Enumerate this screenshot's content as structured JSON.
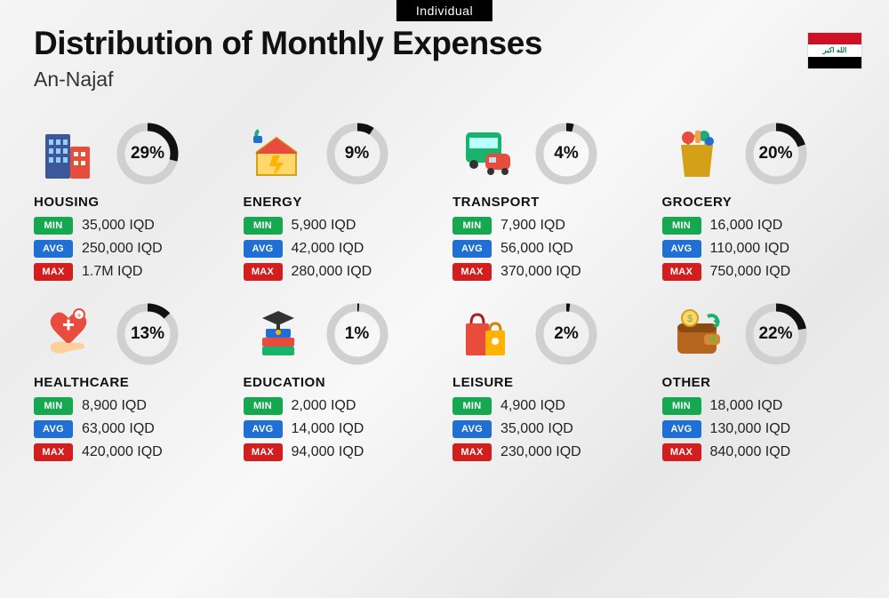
{
  "badge": "Individual",
  "title": "Distribution of Monthly Expenses",
  "subtitle": "An-Najaf",
  "flag": {
    "top_color": "#CE1126",
    "mid_color": "#ffffff",
    "bottom_color": "#000000",
    "script_color": "#007A3D",
    "script": "الله اكبر"
  },
  "labels": {
    "min": "MIN",
    "avg": "AVG",
    "max": "MAX"
  },
  "tag_colors": {
    "min": "#16a850",
    "avg": "#1f6fd4",
    "max": "#d21e1e"
  },
  "donut": {
    "track_color": "#d0d0d0",
    "arc_color": "#111111",
    "stroke_width": 9,
    "radius": 30
  },
  "background": "linear-gradient(135deg,#f5f5f5,#ececec,#f8f8f8,#e8e8e8,#f0f0f0)",
  "categories": [
    {
      "key": "housing",
      "name": "HOUSING",
      "pct": 29,
      "min": "35,000 IQD",
      "avg": "250,000 IQD",
      "max": "1.7M IQD",
      "icon": "buildings"
    },
    {
      "key": "energy",
      "name": "ENERGY",
      "pct": 9,
      "min": "5,900 IQD",
      "avg": "42,000 IQD",
      "max": "280,000 IQD",
      "icon": "energy-house"
    },
    {
      "key": "transport",
      "name": "TRANSPORT",
      "pct": 4,
      "min": "7,900 IQD",
      "avg": "56,000 IQD",
      "max": "370,000 IQD",
      "icon": "bus-car"
    },
    {
      "key": "grocery",
      "name": "GROCERY",
      "pct": 20,
      "min": "16,000 IQD",
      "avg": "110,000 IQD",
      "max": "750,000 IQD",
      "icon": "grocery-bag"
    },
    {
      "key": "healthcare",
      "name": "HEALTHCARE",
      "pct": 13,
      "min": "8,900 IQD",
      "avg": "63,000 IQD",
      "max": "420,000 IQD",
      "icon": "heart-hand"
    },
    {
      "key": "education",
      "name": "EDUCATION",
      "pct": 1,
      "min": "2,000 IQD",
      "avg": "14,000 IQD",
      "max": "94,000 IQD",
      "icon": "books-cap"
    },
    {
      "key": "leisure",
      "name": "LEISURE",
      "pct": 2,
      "min": "4,900 IQD",
      "avg": "35,000 IQD",
      "max": "230,000 IQD",
      "icon": "shopping-bags"
    },
    {
      "key": "other",
      "name": "OTHER",
      "pct": 22,
      "min": "18,000 IQD",
      "avg": "130,000 IQD",
      "max": "840,000 IQD",
      "icon": "wallet"
    }
  ],
  "icon_svgs": {
    "buildings": "<rect x='6' y='10' width='28' height='50' fill='#3b5998' rx='2'/><rect x='10' y='16' width='5' height='6' fill='#9cf'/><rect x='18' y='16' width='5' height='6' fill='#9cf'/><rect x='26' y='16' width='5' height='6' fill='#9cf'/><rect x='10' y='26' width='5' height='6' fill='#9cf'/><rect x='18' y='26' width='5' height='6' fill='#9cf'/><rect x='26' y='26' width='5' height='6' fill='#9cf'/><rect x='10' y='36' width='5' height='6' fill='#9cf'/><rect x='18' y='36' width='5' height='6' fill='#9cf'/><rect x='26' y='36' width='5' height='6' fill='#9cf'/><rect x='34' y='24' width='22' height='36' fill='#e74c3c' rx='2'/><rect x='38' y='30' width='5' height='5' fill='#ffe'/><rect x='46' y='30' width='5' height='5' fill='#ffe'/><rect x='38' y='40' width='5' height='5' fill='#ffe'/><rect x='46' y='40' width='5' height='5' fill='#ffe'/>",
    "energy-house": "<path d='M30 14 L52 30 L52 56 L8 56 L8 30 Z' fill='#ffd76b' stroke='#d4a017' stroke-width='2'/><path d='M30 14 L54 32 L6 32 Z' fill='#e74c3c'/><path d='M26 34 L34 34 L30 42 L38 42 L26 58 L30 46 L22 46 Z' fill='#ffb300'/><path d='M10 6 Q6 8 8 14' stroke='#2a7' stroke-width='4' fill='none'/><rect x='4' y='12' width='10' height='8' rx='2' fill='#1f6fd4'/>",
    "bus-car": "<rect x='8' y='8' width='40' height='34' rx='5' fill='#19b36b'/><rect x='12' y='14' width='32' height='12' fill='#bff'/><circle cx='17' cy='44' r='5' fill='#333'/><circle cx='39' cy='44' r='5' fill='#333'/><rect x='30' y='32' width='28' height='18' rx='6' fill='#e74c3c'/><rect x='34' y='36' width='8' height='6' fill='#cde'/><circle cx='36' cy='52' r='4' fill='#333'/><circle cx='52' cy='52' r='4' fill='#333'/>",
    "grocery-bag": "<path d='M14 22 L50 22 L46 58 L18 58 Z' fill='#d4a017'/><path d='M22 22 Q22 12 32 12 Q42 12 42 22' stroke='#8a6' stroke-width='3' fill='none'/><circle cx='22' cy='14' r='7' fill='#e74c3c'/><circle cx='40' cy='12' r='6' fill='#2a7'/><rect x='30' y='6' width='6' height='14' fill='#ff9f40' rx='2'/><circle cx='46' cy='18' r='5' fill='#1f6fd4'/>",
    "heart-hand": "<path d='M32 14 Q22 2 14 12 Q8 20 18 30 L32 44 L46 30 Q56 20 50 12 Q42 2 32 14 Z' fill='#e74c3c'/><rect x='26' y='20' width='12' height='3' fill='#fff'/><rect x='30.5' y='15.5' width='3' height='12' fill='#fff'/><path d='M12 44 Q20 38 30 42 L44 42 Q50 42 50 48 L30 52 Q18 56 12 50 Z' fill='#ffcf99'/><circle cx='44' cy='10' r='6' fill='#fff' stroke='#e74c3c' stroke-width='2'/><text x='44' y='14' font-size='9' fill='#e74c3c' text-anchor='middle'>+</text>",
    "books-cap": "<rect x='14' y='36' width='36' height='10' fill='#e74c3c' rx='2'/><rect x='14' y='46' width='36' height='10' fill='#19b36b' rx='2'/><rect x='18' y='26' width='28' height='10' fill='#1f6fd4' rx='2'/><path d='M32 6 L50 14 L32 22 L14 14 Z' fill='#333'/><rect x='30' y='20' width='4' height='8' fill='#333'/><circle cx='32' cy='30' r='3' fill='#ffb300'/>",
    "shopping-bags": "<rect x='8' y='20' width='26' height='36' fill='#e74c3c' rx='2'/><path d='M14 20 Q14 10 21 10 Q28 10 28 20' stroke='#a22' stroke-width='3' fill='none'/><rect x='30' y='28' width='22' height='28' fill='#ffb300' rx='2'/><path d='M35 28 Q35 20 41 20 Q47 20 47 28' stroke='#c80' stroke-width='3' fill='none'/><circle cx='41' cy='40' r='4' fill='#fff'/>",
    "wallet": "<rect x='10' y='20' width='44' height='34' rx='6' fill='#b5651d'/><rect x='10' y='20' width='44' height='10' fill='#8a4a12' rx='6'/><rect x='40' y='32' width='18' height='12' rx='4' fill='#d4893a'/><circle cx='50' cy='38' r='3' fill='#6b3'/><circle cx='24' cy='14' r='9' fill='#ffd76b' stroke='#d4a017' stroke-width='2'/><text x='24' y='18' font-size='11' fill='#7a5' text-anchor='middle'>$</text><path d='M44 12 Q54 8 56 20' stroke='#19b36b' stroke-width='4' fill='none'/><path d='M56 20 L52 16 M56 20 L52 24' stroke='#19b36b' stroke-width='4'/>"
  }
}
